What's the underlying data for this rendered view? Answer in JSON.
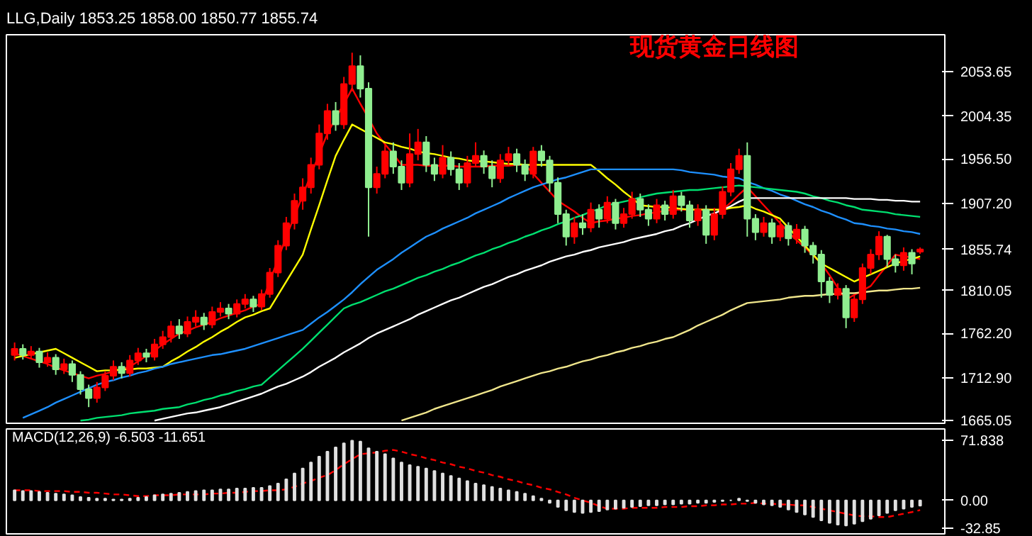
{
  "chart_data": [
    {
      "type": "candlestick",
      "title": "LLG,Daily  1853.25 1858.00 1850.77 1855.74",
      "annotations": [
        "现货黄金日线图"
      ],
      "categories": [
        null,
        null,
        null,
        null,
        null,
        null,
        null,
        null,
        null,
        null,
        null,
        null,
        null,
        null,
        null,
        null,
        null,
        null,
        null,
        null,
        null,
        null,
        null,
        null,
        null,
        null,
        null,
        null,
        null,
        null,
        null,
        null,
        null,
        null,
        null,
        null,
        null,
        null,
        null,
        null,
        null,
        null,
        null,
        null,
        null,
        null,
        null,
        null,
        null,
        null,
        null,
        null,
        null,
        null,
        null,
        null,
        null,
        null,
        null,
        null,
        null,
        null,
        null,
        null,
        null,
        null,
        null,
        null,
        null,
        null,
        null,
        null,
        null,
        null,
        null,
        null,
        null,
        null,
        null,
        null,
        null,
        null,
        null,
        null,
        null,
        null,
        null,
        null,
        null,
        null,
        null,
        null,
        null,
        null,
        null,
        null,
        null,
        null,
        null,
        null,
        null,
        null,
        null,
        null,
        null,
        null,
        null,
        null,
        null,
        null,
        null
      ],
      "ohlc": [
        [
          1738,
          1752,
          1732,
          1745
        ],
        [
          1745,
          1750,
          1733,
          1738
        ],
        [
          1738,
          1748,
          1734,
          1742
        ],
        [
          1742,
          1746,
          1724,
          1730
        ],
        [
          1730,
          1741,
          1725,
          1735
        ],
        [
          1735,
          1739,
          1716,
          1722
        ],
        [
          1722,
          1734,
          1717,
          1728
        ],
        [
          1728,
          1732,
          1708,
          1716
        ],
        [
          1716,
          1720,
          1694,
          1700
        ],
        [
          1700,
          1705,
          1680,
          1690
        ],
        [
          1690,
          1708,
          1685,
          1702
        ],
        [
          1702,
          1720,
          1698,
          1715
        ],
        [
          1715,
          1732,
          1710,
          1725
        ],
        [
          1725,
          1730,
          1712,
          1718
        ],
        [
          1718,
          1738,
          1714,
          1732
        ],
        [
          1732,
          1746,
          1727,
          1740
        ],
        [
          1740,
          1745,
          1730,
          1736
        ],
        [
          1736,
          1756,
          1732,
          1750
        ],
        [
          1750,
          1765,
          1745,
          1758
        ],
        [
          1758,
          1776,
          1752,
          1770
        ],
        [
          1770,
          1778,
          1756,
          1762
        ],
        [
          1762,
          1781,
          1758,
          1775
        ],
        [
          1775,
          1788,
          1770,
          1780
        ],
        [
          1780,
          1785,
          1766,
          1772
        ],
        [
          1772,
          1792,
          1768,
          1786
        ],
        [
          1786,
          1797,
          1781,
          1790
        ],
        [
          1790,
          1795,
          1778,
          1784
        ],
        [
          1784,
          1800,
          1780,
          1795
        ],
        [
          1795,
          1806,
          1790,
          1800
        ],
        [
          1800,
          1804,
          1786,
          1792
        ],
        [
          1792,
          1811,
          1788,
          1806
        ],
        [
          1806,
          1835,
          1802,
          1830
        ],
        [
          1830,
          1866,
          1825,
          1860
        ],
        [
          1860,
          1892,
          1855,
          1885
        ],
        [
          1885,
          1918,
          1878,
          1910
        ],
        [
          1910,
          1935,
          1900,
          1925
        ],
        [
          1925,
          1958,
          1918,
          1950
        ],
        [
          1950,
          1995,
          1945,
          1985
        ],
        [
          1985,
          2018,
          1978,
          2010
        ],
        [
          2010,
          2020,
          1988,
          1995
        ],
        [
          1995,
          2048,
          1990,
          2040
        ],
        [
          2040,
          2075,
          2032,
          2060
        ],
        [
          2060,
          2072,
          2025,
          2035
        ],
        [
          2035,
          2042,
          1870,
          1925
        ],
        [
          1925,
          1948,
          1918,
          1940
        ],
        [
          1940,
          1972,
          1935,
          1965
        ],
        [
          1965,
          1975,
          1940,
          1948
        ],
        [
          1948,
          1955,
          1922,
          1930
        ],
        [
          1930,
          1985,
          1925,
          1962
        ],
        [
          1962,
          1990,
          1955,
          1975
        ],
        [
          1975,
          1982,
          1942,
          1950
        ],
        [
          1950,
          1958,
          1932,
          1940
        ],
        [
          1940,
          1972,
          1935,
          1958
        ],
        [
          1958,
          1965,
          1938,
          1945
        ],
        [
          1945,
          1952,
          1922,
          1930
        ],
        [
          1930,
          1960,
          1925,
          1952
        ],
        [
          1952,
          1975,
          1948,
          1960
        ],
        [
          1960,
          1966,
          1940,
          1948
        ],
        [
          1948,
          1955,
          1925,
          1935
        ],
        [
          1935,
          1962,
          1930,
          1955
        ],
        [
          1955,
          1970,
          1950,
          1962
        ],
        [
          1962,
          1968,
          1942,
          1950
        ],
        [
          1950,
          1956,
          1932,
          1940
        ],
        [
          1940,
          1970,
          1935,
          1965
        ],
        [
          1965,
          1972,
          1948,
          1955
        ],
        [
          1955,
          1960,
          1920,
          1930
        ],
        [
          1930,
          1936,
          1885,
          1895
        ],
        [
          1895,
          1900,
          1860,
          1870
        ],
        [
          1870,
          1892,
          1862,
          1885
        ],
        [
          1885,
          1895,
          1872,
          1880
        ],
        [
          1880,
          1908,
          1875,
          1900
        ],
        [
          1900,
          1906,
          1880,
          1890
        ],
        [
          1890,
          1915,
          1885,
          1908
        ],
        [
          1908,
          1912,
          1878,
          1885
        ],
        [
          1885,
          1902,
          1880,
          1895
        ],
        [
          1895,
          1920,
          1890,
          1912
        ],
        [
          1912,
          1918,
          1892,
          1900
        ],
        [
          1900,
          1906,
          1882,
          1890
        ],
        [
          1890,
          1912,
          1885,
          1905
        ],
        [
          1905,
          1910,
          1888,
          1895
        ],
        [
          1895,
          1922,
          1890,
          1915
        ],
        [
          1915,
          1920,
          1898,
          1905
        ],
        [
          1905,
          1910,
          1880,
          1888
        ],
        [
          1888,
          1906,
          1882,
          1900
        ],
        [
          1900,
          1905,
          1862,
          1872
        ],
        [
          1872,
          1902,
          1866,
          1895
        ],
        [
          1895,
          1926,
          1890,
          1920
        ],
        [
          1920,
          1952,
          1915,
          1945
        ],
        [
          1945,
          1968,
          1940,
          1960
        ],
        [
          1960,
          1975,
          1870,
          1890
        ],
        [
          1890,
          1895,
          1866,
          1875
        ],
        [
          1875,
          1892,
          1870,
          1885
        ],
        [
          1885,
          1890,
          1862,
          1870
        ],
        [
          1870,
          1888,
          1865,
          1882
        ],
        [
          1882,
          1886,
          1860,
          1868
        ],
        [
          1868,
          1884,
          1862,
          1878
        ],
        [
          1878,
          1882,
          1852,
          1860
        ],
        [
          1860,
          1864,
          1840,
          1850
        ],
        [
          1850,
          1855,
          1802,
          1820
        ],
        [
          1820,
          1825,
          1796,
          1805
        ],
        [
          1805,
          1818,
          1800,
          1812
        ],
        [
          1812,
          1816,
          1768,
          1780
        ],
        [
          1780,
          1806,
          1775,
          1800
        ],
        [
          1800,
          1840,
          1795,
          1835
        ],
        [
          1835,
          1856,
          1828,
          1850
        ],
        [
          1850,
          1876,
          1844,
          1870
        ],
        [
          1870,
          1872,
          1836,
          1845
        ],
        [
          1845,
          1850,
          1830,
          1838
        ],
        [
          1838,
          1858,
          1832,
          1852
        ],
        [
          1852,
          1856,
          1828,
          1840
        ],
        [
          1853.25,
          1858.0,
          1850.77,
          1855.74
        ]
      ],
      "colors": [
        "#ff0000",
        "#90ee90",
        "#ff0000",
        "#90ee90",
        "#ff0000",
        "#90ee90",
        "#ff0000",
        "#90ee90",
        "#90ee90",
        "#90ee90",
        "#ff0000",
        "#ff0000",
        "#ff0000",
        "#90ee90",
        "#ff0000",
        "#ff0000",
        "#90ee90",
        "#ff0000",
        "#ff0000",
        "#ff0000",
        "#90ee90",
        "#ff0000",
        "#ff0000",
        "#90ee90",
        "#ff0000",
        "#ff0000",
        "#90ee90",
        "#ff0000",
        "#ff0000",
        "#90ee90",
        "#ff0000",
        "#ff0000",
        "#ff0000",
        "#ff0000",
        "#ff0000",
        "#ff0000",
        "#ff0000",
        "#ff0000",
        "#ff0000",
        "#90ee90",
        "#ff0000",
        "#ff0000",
        "#90ee90",
        "#90ee90",
        "#ff0000",
        "#ff0000",
        "#90ee90",
        "#90ee90",
        "#ff0000",
        "#ff0000",
        "#90ee90",
        "#90ee90",
        "#ff0000",
        "#90ee90",
        "#90ee90",
        "#ff0000",
        "#ff0000",
        "#90ee90",
        "#90ee90",
        "#ff0000",
        "#ff0000",
        "#90ee90",
        "#90ee90",
        "#ff0000",
        "#90ee90",
        "#90ee90",
        "#90ee90",
        "#90ee90",
        "#ff0000",
        "#90ee90",
        "#ff0000",
        "#90ee90",
        "#ff0000",
        "#90ee90",
        "#ff0000",
        "#ff0000",
        "#90ee90",
        "#90ee90",
        "#ff0000",
        "#90ee90",
        "#ff0000",
        "#90ee90",
        "#90ee90",
        "#ff0000",
        "#90ee90",
        "#ff0000",
        "#ff0000",
        "#ff0000",
        "#ff0000",
        "#90ee90",
        "#90ee90",
        "#ff0000",
        "#90ee90",
        "#ff0000",
        "#90ee90",
        "#ff0000",
        "#90ee90",
        "#90ee90",
        "#90ee90",
        "#90ee90",
        "#ff0000",
        "#90ee90",
        "#ff0000",
        "#ff0000",
        "#ff0000",
        "#ff0000",
        "#90ee90",
        "#90ee90",
        "#ff0000",
        "#90ee90",
        "#ff0000"
      ],
      "series": [
        {
          "type": "line",
          "color": "#ff0000",
          "values": [
            1740,
            1737,
            1734,
            1731,
            1728,
            1724,
            1721,
            1718,
            1715,
            1712,
            1715,
            1717,
            1720,
            1722,
            1725,
            1731,
            1737,
            1743,
            1750,
            1756,
            1762,
            1765,
            1769,
            1772,
            1775,
            1779,
            1782,
            1785,
            1788,
            1792,
            1795,
            1820,
            1845,
            1870,
            1893,
            1916,
            1939,
            1962,
            1985,
            2002,
            2018,
            2035,
            2018,
            2002,
            1985,
            1973,
            1962,
            1950,
            1950,
            1950,
            1949,
            1949,
            1949,
            1949,
            1948,
            1948,
            1948,
            1948,
            1949,
            1949,
            1949,
            1950,
            1950,
            1940,
            1930,
            1920,
            1910,
            1904,
            1898,
            1891,
            1885,
            1887,
            1888,
            1890,
            1891,
            1893,
            1894,
            1896,
            1897,
            1899,
            1900,
            1900,
            1900,
            1900,
            1900,
            1900,
            1900,
            1908,
            1917,
            1925,
            1915,
            1905,
            1895,
            1885,
            1875,
            1866,
            1858,
            1849,
            1840,
            1827,
            1813,
            1800,
            1805,
            1810,
            1815,
            1827,
            1838,
            1850,
            1848,
            1847,
            1845
          ]
        },
        {
          "type": "line",
          "color": "#ffff00",
          "values": [
            1735,
            1737,
            1739,
            1741,
            1743,
            1745,
            1740,
            1735,
            1730,
            1725,
            1720,
            1721,
            1721,
            1722,
            1722,
            1723,
            1723,
            1724,
            1725,
            1731,
            1736,
            1742,
            1747,
            1753,
            1758,
            1764,
            1769,
            1775,
            1780,
            1783,
            1787,
            1790,
            1805,
            1820,
            1835,
            1850,
            1878,
            1905,
            1933,
            1960,
            1978,
            1995,
            1990,
            1985,
            1980,
            1975,
            1973,
            1970,
            1968,
            1965,
            1963,
            1962,
            1960,
            1958,
            1957,
            1955,
            1954,
            1954,
            1953,
            1952,
            1951,
            1951,
            1950,
            1950,
            1950,
            1950,
            1950,
            1950,
            1950,
            1950,
            1950,
            1943,
            1935,
            1928,
            1920,
            1913,
            1905,
            1904,
            1903,
            1903,
            1902,
            1901,
            1900,
            1900,
            1900,
            1900,
            1900,
            1902,
            1903,
            1905,
            1901,
            1898,
            1894,
            1890,
            1880,
            1870,
            1860,
            1850,
            1840,
            1835,
            1830,
            1825,
            1820,
            1824,
            1828,
            1832,
            1836,
            1840,
            1843,
            1845,
            1848
          ]
        },
        {
          "type": "line",
          "color": "#1e90ff",
          "values": [
            null,
            1668,
            1672,
            1676,
            1680,
            1685,
            1689,
            1693,
            1697,
            1701,
            1705,
            1708,
            1710,
            1713,
            1715,
            1718,
            1720,
            1723,
            1725,
            1728,
            1730,
            1732,
            1734,
            1736,
            1738,
            1739,
            1741,
            1743,
            1745,
            1748,
            1751,
            1754,
            1757,
            1760,
            1763,
            1766,
            1773,
            1780,
            1786,
            1793,
            1800,
            1808,
            1817,
            1825,
            1833,
            1839,
            1845,
            1852,
            1858,
            1864,
            1870,
            1874,
            1879,
            1883,
            1887,
            1891,
            1896,
            1900,
            1904,
            1908,
            1913,
            1917,
            1921,
            1925,
            1928,
            1931,
            1934,
            1936,
            1939,
            1942,
            1945,
            1945,
            1945,
            1945,
            1945,
            1945,
            1945,
            1945,
            1945,
            1945,
            1945,
            1944,
            1942,
            1941,
            1940,
            1939,
            1937,
            1936,
            1935,
            1931,
            1928,
            1924,
            1921,
            1917,
            1914,
            1910,
            1906,
            1903,
            1899,
            1896,
            1892,
            1889,
            1885,
            1884,
            1882,
            1881,
            1879,
            1878,
            1876,
            1875,
            1873
          ]
        },
        {
          "type": "line",
          "color": "#00e070",
          "values": [
            null,
            null,
            null,
            null,
            null,
            null,
            null,
            null,
            1665,
            1666,
            1668,
            1669,
            1670,
            1671,
            1673,
            1674,
            1675,
            1676,
            1678,
            1679,
            1680,
            1683,
            1685,
            1688,
            1690,
            1693,
            1695,
            1698,
            1700,
            1703,
            1705,
            1713,
            1721,
            1729,
            1737,
            1745,
            1754,
            1763,
            1772,
            1781,
            1790,
            1794,
            1797,
            1801,
            1805,
            1809,
            1812,
            1816,
            1820,
            1824,
            1827,
            1831,
            1834,
            1838,
            1841,
            1845,
            1849,
            1852,
            1856,
            1859,
            1863,
            1866,
            1870,
            1873,
            1877,
            1880,
            1884,
            1887,
            1891,
            1894,
            1898,
            1901,
            1905,
            1907,
            1909,
            1911,
            1914,
            1916,
            1918,
            1919,
            1920,
            1921,
            1922,
            1922,
            1923,
            1924,
            1925,
            1926,
            1927,
            1926,
            1925,
            1924,
            1923,
            1922,
            1921,
            1920,
            1918,
            1915,
            1913,
            1910,
            1908,
            1905,
            1903,
            1900,
            1899,
            1898,
            1897,
            1895,
            1894,
            1893,
            1892
          ]
        },
        {
          "type": "line",
          "color": "#ffffff",
          "values": [
            null,
            null,
            null,
            null,
            null,
            null,
            null,
            null,
            null,
            null,
            null,
            null,
            null,
            null,
            null,
            null,
            null,
            1665,
            1667,
            1669,
            1671,
            1673,
            1674,
            1676,
            1678,
            1680,
            1683,
            1686,
            1689,
            1692,
            1695,
            1699,
            1703,
            1706,
            1710,
            1714,
            1719,
            1725,
            1730,
            1735,
            1741,
            1746,
            1751,
            1757,
            1762,
            1766,
            1770,
            1774,
            1778,
            1783,
            1787,
            1791,
            1795,
            1799,
            1802,
            1806,
            1810,
            1814,
            1817,
            1821,
            1825,
            1828,
            1832,
            1835,
            1838,
            1842,
            1845,
            1848,
            1850,
            1853,
            1855,
            1858,
            1860,
            1862,
            1864,
            1867,
            1869,
            1871,
            1873,
            1876,
            1878,
            1882,
            1885,
            1889,
            1893,
            1896,
            1900,
            1904,
            1909,
            1913,
            1913,
            1913,
            1913,
            1913,
            1913,
            1913,
            1913,
            1913,
            1913,
            1913,
            1913,
            1913,
            1912,
            1912,
            1912,
            1911,
            1911,
            1910,
            1910,
            1909,
            1909
          ]
        },
        {
          "type": "line",
          "color": "#f0e68c",
          "values": [
            null,
            null,
            null,
            null,
            null,
            null,
            null,
            null,
            null,
            null,
            null,
            null,
            null,
            null,
            null,
            null,
            null,
            null,
            null,
            null,
            null,
            null,
            null,
            null,
            null,
            null,
            null,
            null,
            null,
            null,
            null,
            null,
            null,
            null,
            null,
            null,
            null,
            null,
            null,
            null,
            null,
            null,
            null,
            null,
            null,
            null,
            null,
            1665,
            1668,
            1671,
            1674,
            1678,
            1681,
            1684,
            1687,
            1690,
            1693,
            1696,
            1699,
            1703,
            1706,
            1709,
            1712,
            1715,
            1718,
            1720,
            1723,
            1725,
            1728,
            1731,
            1733,
            1736,
            1738,
            1741,
            1743,
            1746,
            1748,
            1751,
            1753,
            1756,
            1758,
            1762,
            1766,
            1771,
            1775,
            1779,
            1783,
            1788,
            1792,
            1796,
            1797,
            1798,
            1799,
            1800,
            1802,
            1803,
            1804,
            1804,
            1805,
            1806,
            1806,
            1807,
            1807,
            1808,
            1809,
            1810,
            1810,
            1811,
            1812,
            1812,
            1813
          ]
        }
      ],
      "ylim": [
        1662,
        2095
      ],
      "yticks": [
        2053.65,
        2004.35,
        {
          "value": 1956.5,
          "label": "1956.50"
        },
        {
          "value": 1907.2,
          "label": "1907.20"
        },
        1855.74,
        1810.05,
        {
          "value": 1762.2,
          "label": "1762.20"
        },
        {
          "value": 1712.9,
          "label": "1712.90"
        },
        1665.05
      ],
      "tick_labels": "y"
    },
    {
      "type": "bar",
      "title": "MACD(12,26,9) -6.503 -11.651",
      "color": "#e0e0e0",
      "categories": [
        null,
        null,
        null,
        null,
        null,
        null,
        null,
        null,
        null,
        null,
        null,
        null,
        null,
        null,
        null,
        null,
        null,
        null,
        null,
        null,
        null,
        null,
        null,
        null,
        null,
        null,
        null,
        null,
        null,
        null,
        null,
        null,
        null,
        null,
        null,
        null,
        null,
        null,
        null,
        null,
        null,
        null,
        null,
        null,
        null,
        null,
        null,
        null,
        null,
        null,
        null,
        null,
        null,
        null,
        null,
        null,
        null,
        null,
        null,
        null,
        null,
        null,
        null,
        null,
        null,
        null,
        null,
        null,
        null,
        null,
        null,
        null,
        null,
        null,
        null,
        null,
        null,
        null,
        null,
        null,
        null,
        null,
        null,
        null,
        null,
        null,
        null,
        null,
        null,
        null,
        null,
        null,
        null,
        null,
        null,
        null,
        null,
        null,
        null,
        null,
        null,
        null,
        null,
        null,
        null,
        null,
        null,
        null,
        null,
        null,
        null
      ],
      "values": [
        12,
        11,
        11,
        10,
        9,
        8,
        7,
        6,
        4,
        3,
        2,
        2,
        1,
        1,
        2,
        3,
        4,
        6,
        7,
        8,
        9,
        10,
        11,
        12,
        12,
        13,
        13,
        14,
        14,
        15,
        15,
        17,
        20,
        25,
        32,
        38,
        45,
        52,
        58,
        63,
        68,
        71,
        70,
        62,
        58,
        55,
        50,
        45,
        42,
        40,
        38,
        35,
        32,
        29,
        26,
        23,
        20,
        18,
        16,
        14,
        12,
        10,
        8,
        5,
        2,
        -3,
        -8,
        -12,
        -14,
        -15,
        -14,
        -13,
        -11,
        -10,
        -9,
        -8,
        -7,
        -6,
        -6,
        -5,
        -5,
        -4,
        -4,
        -3,
        -3,
        -2,
        -1,
        0,
        2,
        -1,
        -3,
        -5,
        -6,
        -8,
        -11,
        -14,
        -17,
        -20,
        -24,
        -27,
        -29,
        -30,
        -28,
        -25,
        -22,
        -18,
        -15,
        -12,
        -10,
        -8,
        -6.503
      ],
      "series": [
        {
          "type": "line",
          "color": "#ff0000",
          "line_style": "dashed",
          "values": [
            12,
            12,
            12,
            11,
            11,
            11,
            11,
            10,
            10,
            9,
            9,
            8,
            7,
            7,
            6,
            5,
            5,
            6,
            6,
            6,
            7,
            7,
            7,
            7,
            8,
            8,
            9,
            9,
            10,
            11,
            11,
            12,
            12,
            13,
            16,
            20,
            23,
            27,
            30,
            36,
            43,
            49,
            55,
            56,
            57,
            59,
            60,
            58,
            55,
            53,
            50,
            48,
            45,
            43,
            40,
            38,
            35,
            33,
            30,
            28,
            25,
            23,
            20,
            18,
            15,
            13,
            10,
            7,
            3,
            0,
            -3,
            -7,
            -10,
            -10,
            -10,
            -9,
            -9,
            -9,
            -9,
            -8,
            -8,
            -8,
            -7,
            -7,
            -6,
            -6,
            -5,
            -5,
            -4,
            -4,
            -3,
            -4,
            -4,
            -5,
            -5,
            -6,
            -6,
            -8,
            -10,
            -12,
            -14,
            -16,
            -18,
            -19,
            -19,
            -20,
            -20,
            -18,
            -16,
            -14,
            -11.651
          ]
        }
      ],
      "ylim": [
        -40,
        85
      ],
      "yticks": [
        71.838,
        {
          "value": 0,
          "label": "0.00"
        },
        -32.85
      ],
      "tick_labels": "y"
    }
  ]
}
